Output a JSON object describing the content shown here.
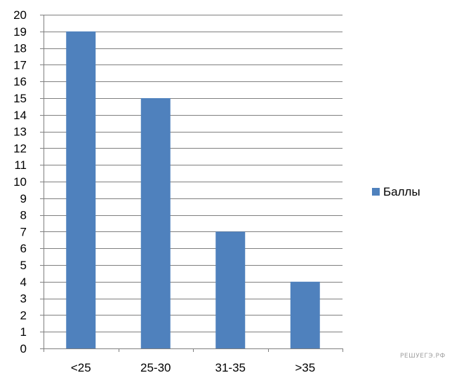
{
  "chart_data": {
    "type": "bar",
    "categories": [
      "<25",
      "25-30",
      "31-35",
      ">35"
    ],
    "series": [
      {
        "name": "Баллы",
        "values": [
          19,
          15,
          7,
          4
        ]
      }
    ],
    "ylim": [
      0,
      20
    ],
    "y_ticks": [
      0,
      1,
      2,
      3,
      4,
      5,
      6,
      7,
      8,
      9,
      10,
      11,
      12,
      13,
      14,
      15,
      16,
      17,
      18,
      19,
      20
    ],
    "grid": true,
    "legend_position": "right",
    "bar_color": "#4f81bd",
    "grid_color": "#7f7f7f"
  },
  "watermark": "РЕШУЕГЭ.РФ"
}
